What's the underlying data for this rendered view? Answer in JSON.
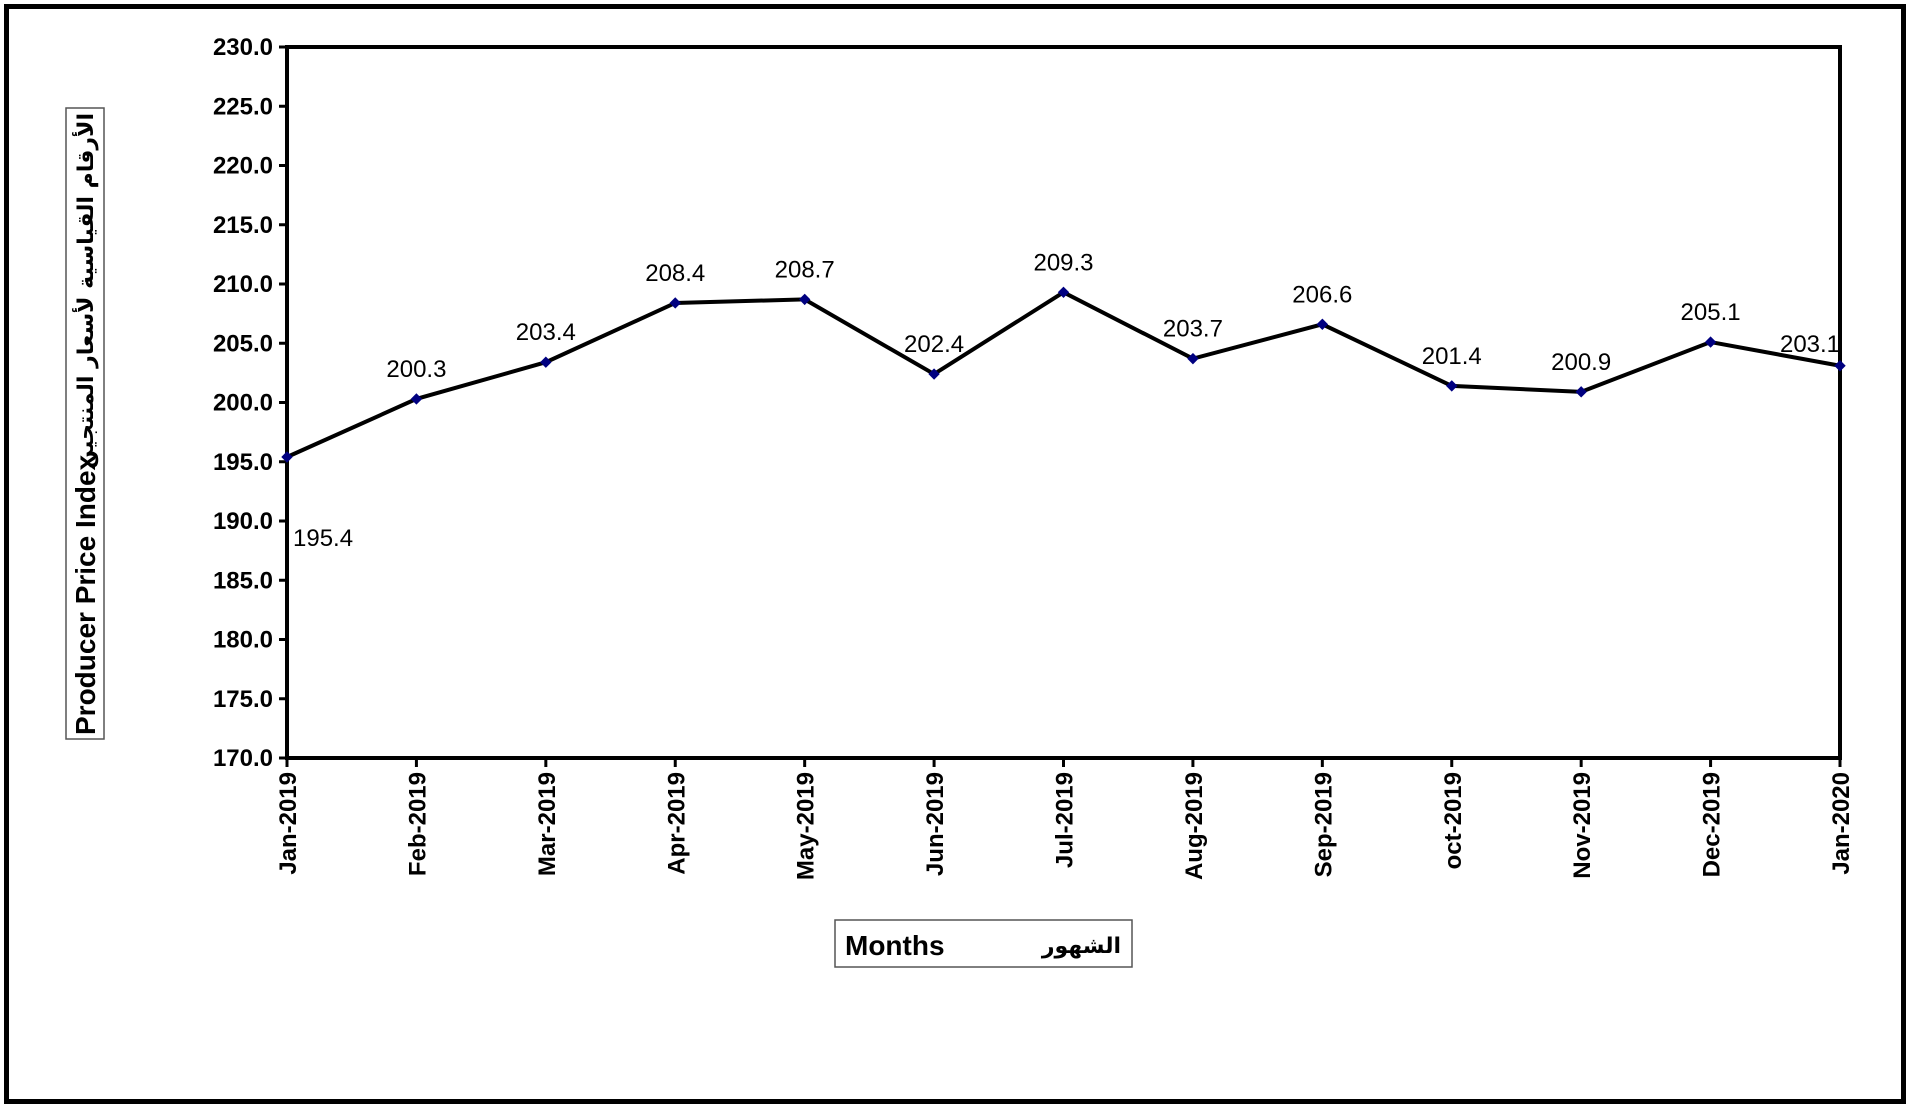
{
  "chart_data": {
    "type": "line",
    "categories": [
      "Jan-2019",
      "Feb-2019",
      "Mar-2019",
      "Apr-2019",
      "May-2019",
      "Jun-2019",
      "Jul-2019",
      "Aug-2019",
      "Sep-2019",
      "oct-2019",
      "Nov-2019",
      "Dec-2019",
      "Jan-2020"
    ],
    "values": [
      195.4,
      200.3,
      203.4,
      208.4,
      208.7,
      202.4,
      209.3,
      203.7,
      206.6,
      201.4,
      200.9,
      205.1,
      203.1
    ],
    "data_labels": [
      "195.4",
      "200.3",
      "203.4",
      "208.4",
      "208.7",
      "202.4",
      "209.3",
      "203.7",
      "206.6",
      "201.4",
      "200.9",
      "205.1",
      "203.1"
    ],
    "y_ticks": [
      "170.0",
      "175.0",
      "180.0",
      "185.0",
      "190.0",
      "195.0",
      "200.0",
      "205.0",
      "210.0",
      "215.0",
      "220.0",
      "225.0",
      "230.0"
    ],
    "ylim": [
      170,
      230
    ],
    "ystep": 5,
    "xlabel": "Months",
    "xlabel_ar": "الشهور",
    "ylabel": "Producer Price Index",
    "ylabel_ar": "الأرقام القياسية لأسعار المنتجين",
    "grid": false,
    "legend": "none",
    "line_color": "#000000",
    "marker_color": "#000080"
  }
}
